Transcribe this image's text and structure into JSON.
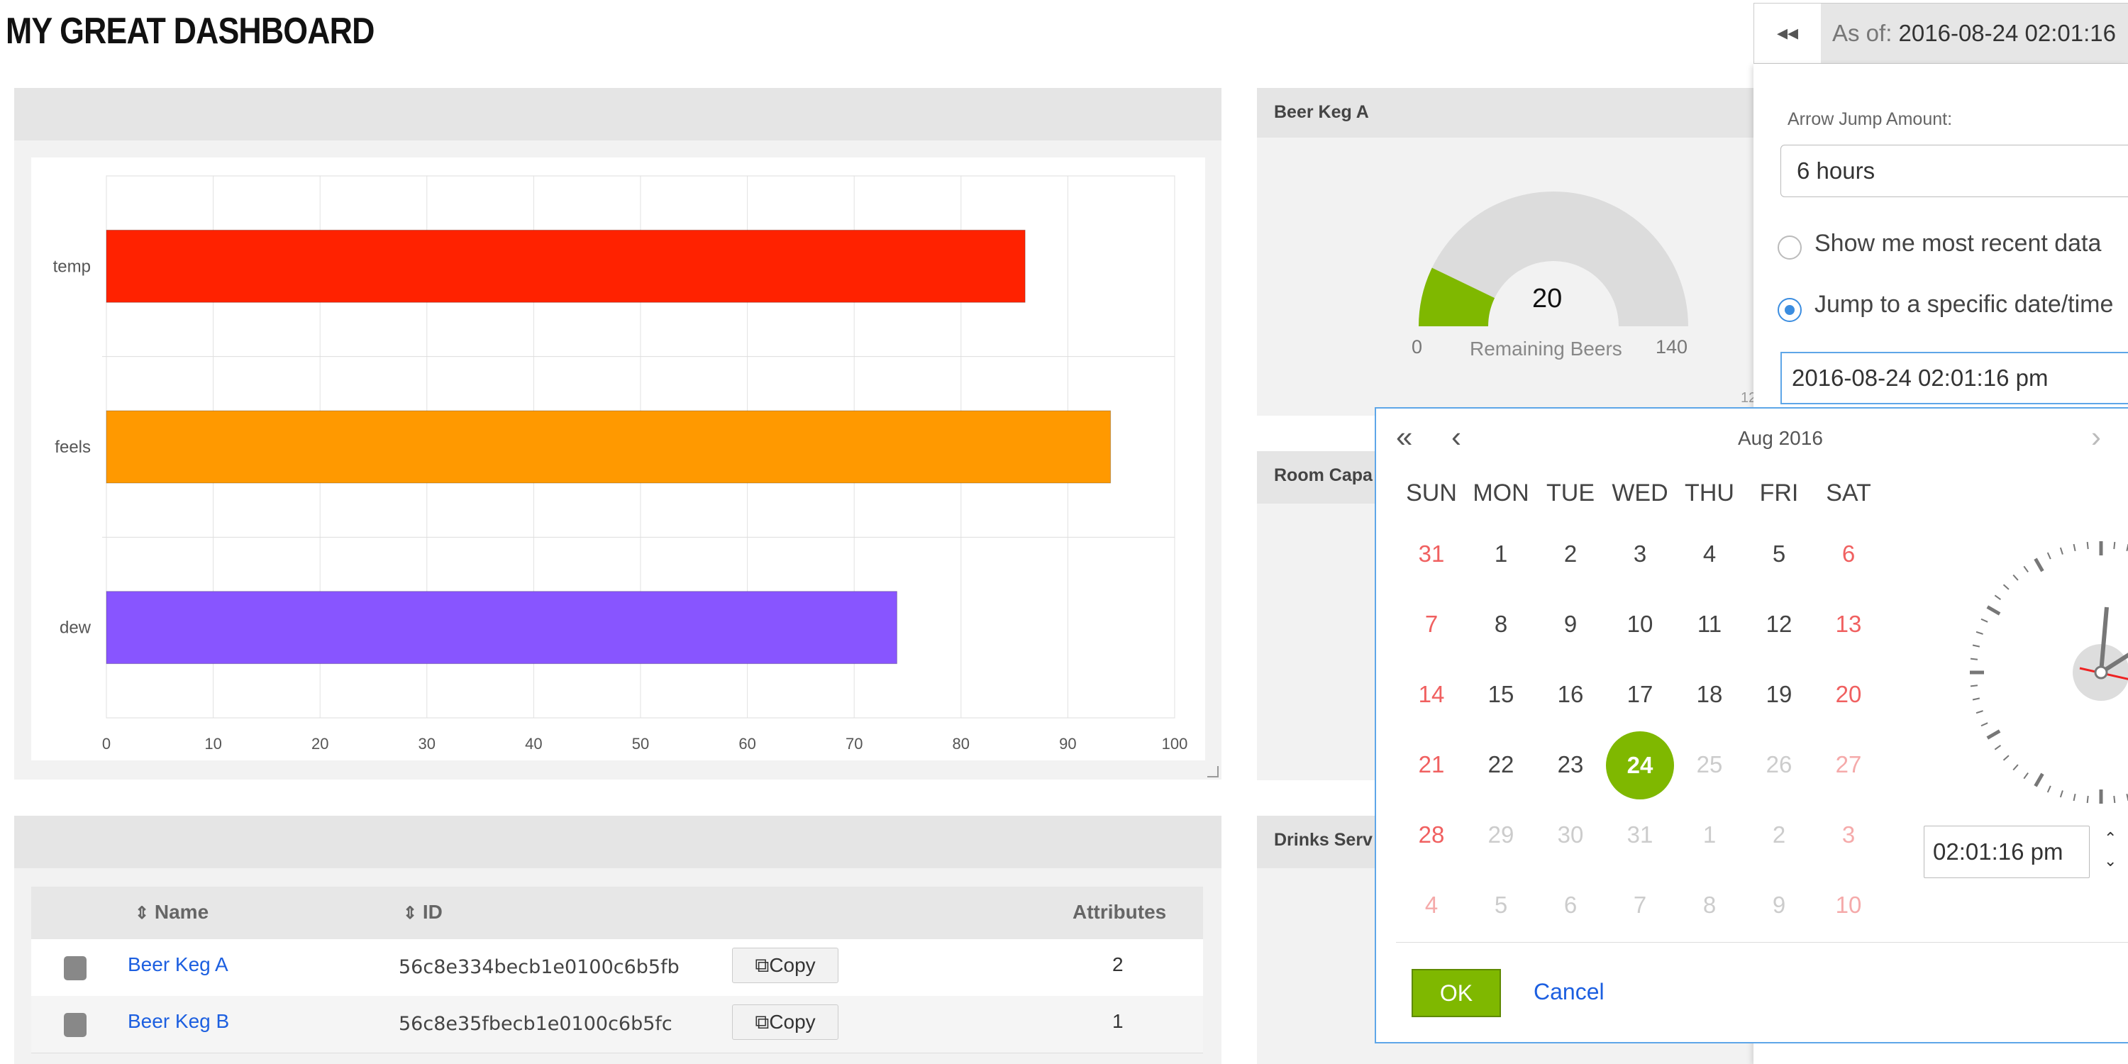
{
  "app": {
    "title": "MY GREAT DASHBOARD"
  },
  "chart_data": {
    "type": "bar",
    "orientation": "horizontal",
    "categories": [
      "temp",
      "feels",
      "dew"
    ],
    "values": [
      86,
      94,
      74
    ],
    "colors": [
      "#ff2200",
      "#ff9900",
      "#8855ff"
    ],
    "xlim": [
      0,
      100
    ],
    "xticks": [
      0,
      10,
      20,
      30,
      40,
      50,
      60,
      70,
      80,
      90,
      100
    ],
    "grid": true,
    "legend": "none",
    "title": "",
    "xlabel": "",
    "ylabel": ""
  },
  "cards": {
    "keg_a": {
      "title": "Beer Keg A",
      "gauge_value": "20",
      "gauge_min": "0",
      "gauge_max": "140",
      "gauge_label": "Remaining Beers",
      "gauge_color": "#7fb800",
      "value": 20,
      "min": 0,
      "max": 140
    },
    "room": {
      "title": "Room Capa"
    },
    "drinks": {
      "title": "Drinks Serv"
    },
    "partial_label": "12"
  },
  "table": {
    "headers": {
      "name": "Name",
      "id": "ID",
      "attributes": "Attributes"
    },
    "rows": [
      {
        "name": "Beer Keg A",
        "id": "56c8e334becb1e0100c6b5fb",
        "copy": "Copy",
        "attributes": "2"
      },
      {
        "name": "Beer Keg B",
        "id": "56c8e35fbecb1e0100c6b5fc",
        "copy": "Copy",
        "attributes": "1"
      }
    ]
  },
  "time_picker": {
    "back_icon": "◂◂",
    "as_of_label": "As of:",
    "as_of_value": "2016-08-24 02:01:16",
    "jump_label": "Arrow Jump Amount:",
    "jump_value": "6 hours",
    "option_recent": "Show me most recent data",
    "option_specific": "Jump to a specific date/time",
    "date_input": "2016-08-24 02:01:16 pm"
  },
  "calendar": {
    "month_label": "Aug 2016",
    "weekdays": [
      "SUN",
      "MON",
      "TUE",
      "WED",
      "THU",
      "FRI",
      "SAT"
    ],
    "weeks": [
      [
        "31",
        "1",
        "2",
        "3",
        "4",
        "5",
        "6"
      ],
      [
        "7",
        "8",
        "9",
        "10",
        "11",
        "12",
        "13"
      ],
      [
        "14",
        "15",
        "16",
        "17",
        "18",
        "19",
        "20"
      ],
      [
        "21",
        "22",
        "23",
        "24",
        "25",
        "26",
        "27"
      ],
      [
        "28",
        "29",
        "30",
        "31",
        "1",
        "2",
        "3"
      ],
      [
        "4",
        "5",
        "6",
        "7",
        "8",
        "9",
        "10"
      ]
    ],
    "selected_color": "#7fb800",
    "weekend_color": "#f06060",
    "time_value": "02:01:16 pm",
    "ok_label": "OK",
    "cancel_label": "Cancel"
  }
}
